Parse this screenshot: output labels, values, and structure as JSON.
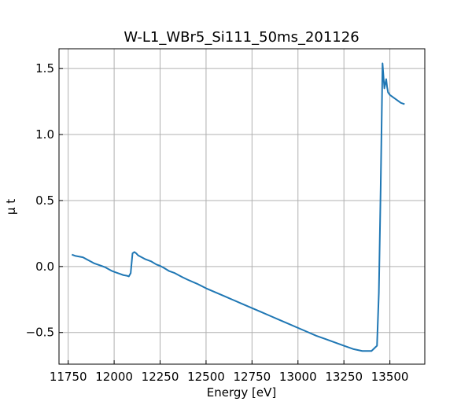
{
  "chart_data": {
    "type": "line",
    "title": "W-L1_WBr5_Si111_50ms_201126",
    "xlabel": "Energy [eV]",
    "ylabel": "μ t",
    "xlim": [
      11700,
      13690
    ],
    "ylim": [
      -0.74,
      1.65
    ],
    "x_ticks": [
      11750,
      12000,
      12250,
      12500,
      12750,
      13000,
      13250,
      13500
    ],
    "x_tick_labels": [
      "11750",
      "12000",
      "12250",
      "12500",
      "12750",
      "13000",
      "13250",
      "13500"
    ],
    "y_ticks": [
      -0.5,
      0.0,
      0.5,
      1.0,
      1.5
    ],
    "y_tick_labels": [
      "−0.5",
      "0.0",
      "0.5",
      "1.0",
      "1.5"
    ],
    "grid": true,
    "legend": false,
    "line_color": "#1f77b4",
    "series": [
      {
        "x": [
          11770,
          11790,
          11810,
          11830,
          11850,
          11870,
          11890,
          11910,
          11930,
          11950,
          11970,
          11990,
          12010,
          12030,
          12050,
          12070,
          12080,
          12090,
          12100,
          12110,
          12120,
          12130,
          12150,
          12170,
          12200,
          12230,
          12250,
          12270,
          12300,
          12330,
          12370,
          12400,
          12450,
          12500,
          12550,
          12600,
          12650,
          12700,
          12750,
          12800,
          12850,
          12900,
          12950,
          13000,
          13050,
          13100,
          13150,
          13200,
          13250,
          13300,
          13350,
          13400,
          13430,
          13440,
          13450,
          13460,
          13470,
          13480,
          13485,
          13490,
          13500,
          13520,
          13540,
          13560,
          13580
        ],
        "y": [
          0.09,
          0.08,
          0.075,
          0.07,
          0.055,
          0.04,
          0.025,
          0.015,
          0.005,
          -0.005,
          -0.02,
          -0.035,
          -0.045,
          -0.055,
          -0.065,
          -0.07,
          -0.075,
          -0.05,
          0.1,
          0.11,
          0.1,
          0.085,
          0.07,
          0.055,
          0.04,
          0.015,
          0.005,
          -0.01,
          -0.035,
          -0.05,
          -0.08,
          -0.1,
          -0.13,
          -0.165,
          -0.195,
          -0.225,
          -0.255,
          -0.285,
          -0.315,
          -0.345,
          -0.375,
          -0.405,
          -0.435,
          -0.465,
          -0.495,
          -0.525,
          -0.55,
          -0.575,
          -0.6,
          -0.625,
          -0.64,
          -0.64,
          -0.6,
          -0.2,
          0.6,
          1.54,
          1.35,
          1.42,
          1.36,
          1.32,
          1.3,
          1.28,
          1.26,
          1.24,
          1.23
        ]
      }
    ]
  }
}
